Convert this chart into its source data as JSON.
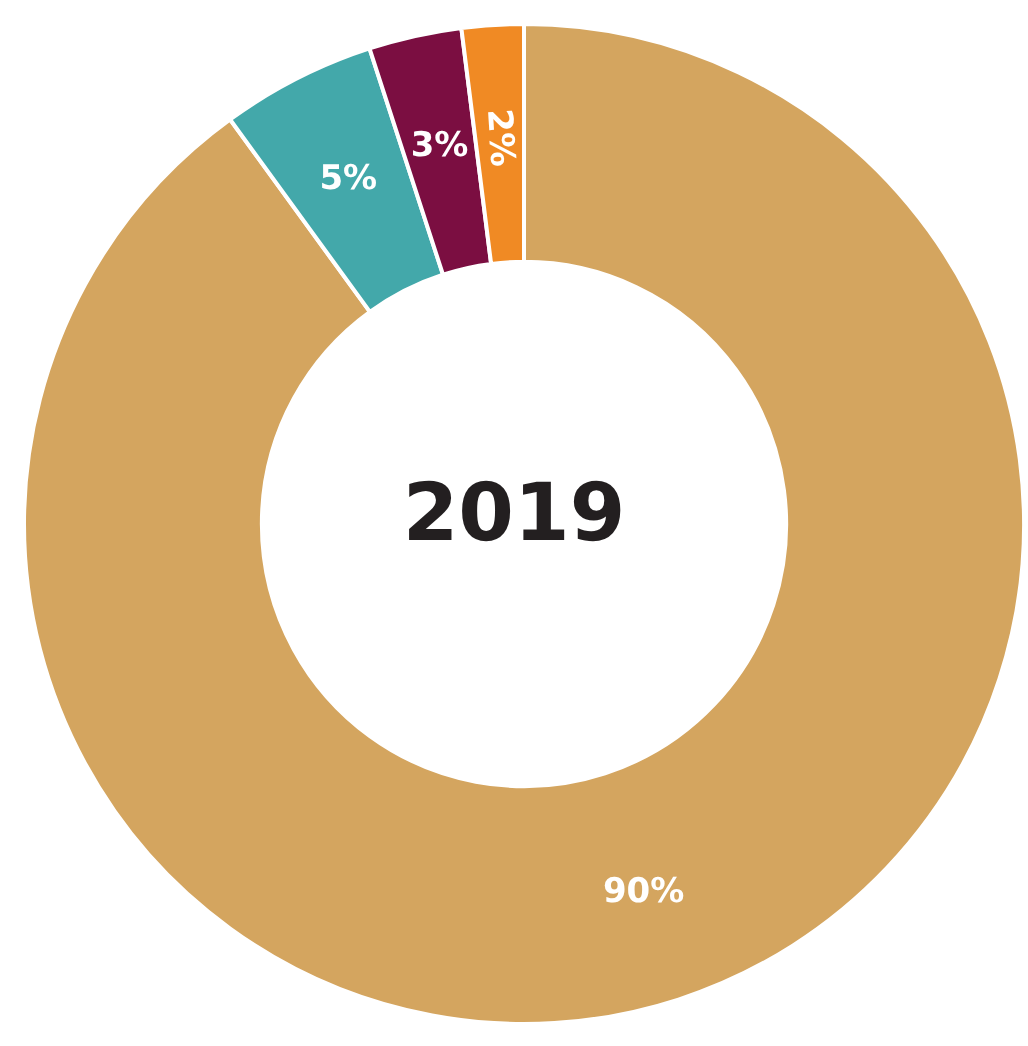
{
  "chart_data": {
    "type": "donut",
    "title": "2019",
    "categories": [
      null,
      null,
      null,
      null
    ],
    "values": [
      90,
      5,
      3,
      2
    ],
    "colors": [
      "#d4a55f",
      "#43a8aa",
      "#7b0e41",
      "#f08a24"
    ],
    "value_labels": [
      "90%",
      "5%",
      "3%",
      "2%"
    ]
  }
}
